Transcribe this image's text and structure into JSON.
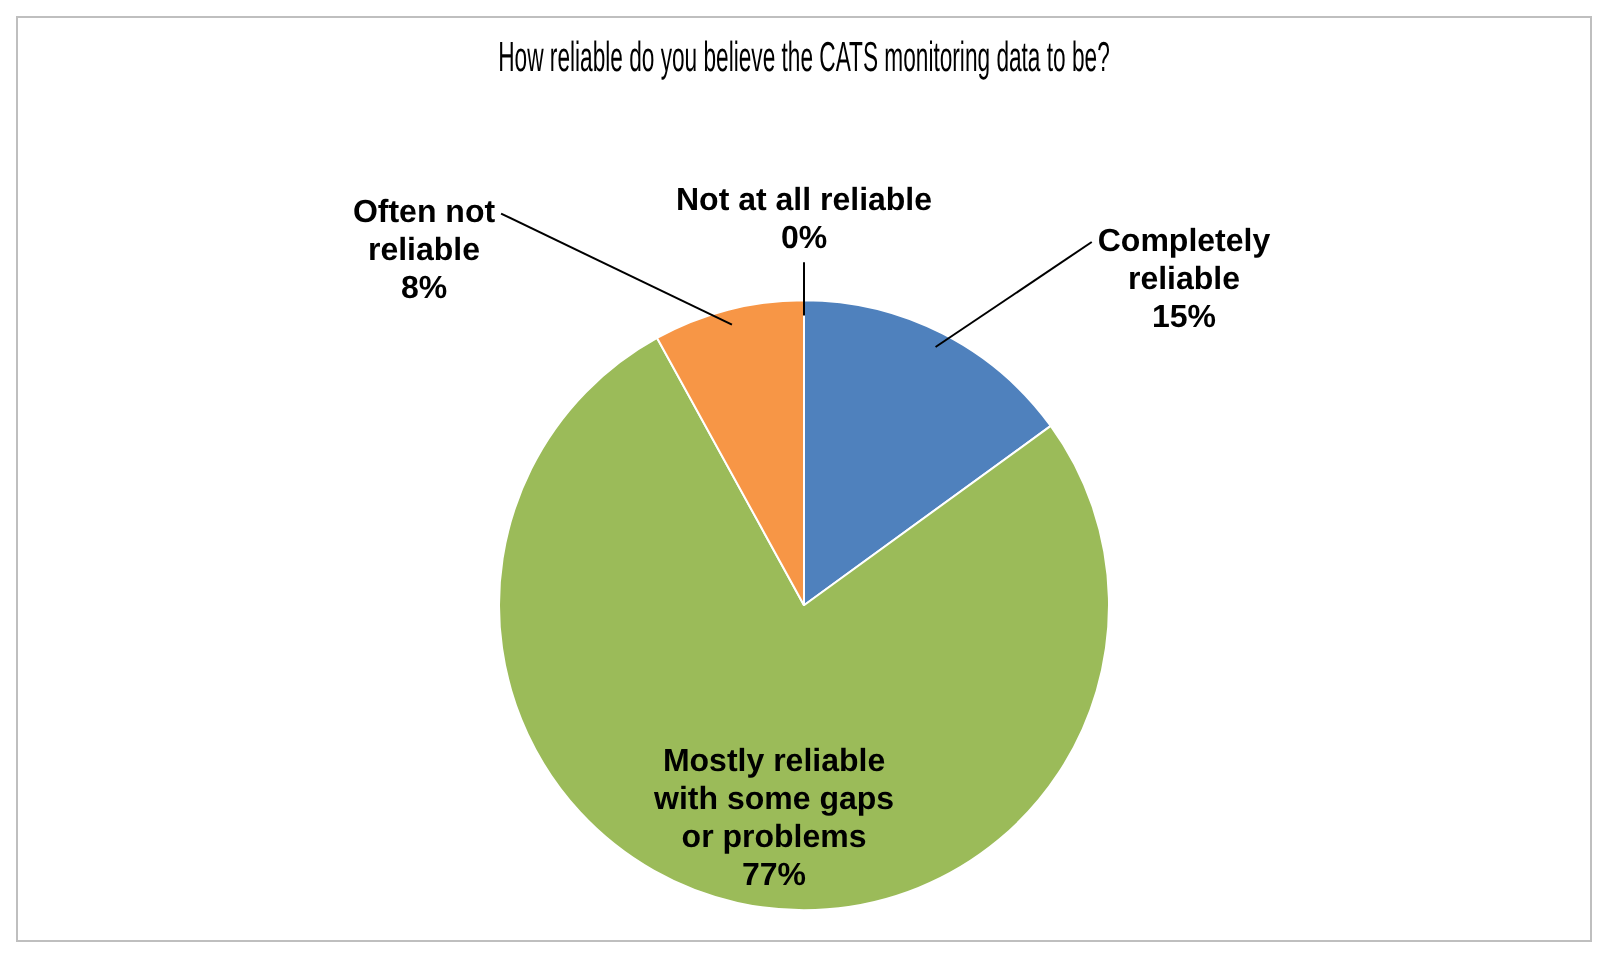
{
  "chart_data": {
    "type": "pie",
    "title": "How reliable do you believe the CATS monitoring data to be?",
    "categories": [
      "Completely reliable",
      "Mostly reliable with some gaps or problems",
      "Often not reliable",
      "Not at all reliable"
    ],
    "values": [
      15,
      77,
      8,
      0
    ],
    "colors": [
      "#4f81bd",
      "#9bbb59",
      "#f79646",
      "#8064a2"
    ],
    "value_labels": [
      "15%",
      "77%",
      "8%",
      "0%"
    ],
    "data_labels": true,
    "legend": false
  }
}
